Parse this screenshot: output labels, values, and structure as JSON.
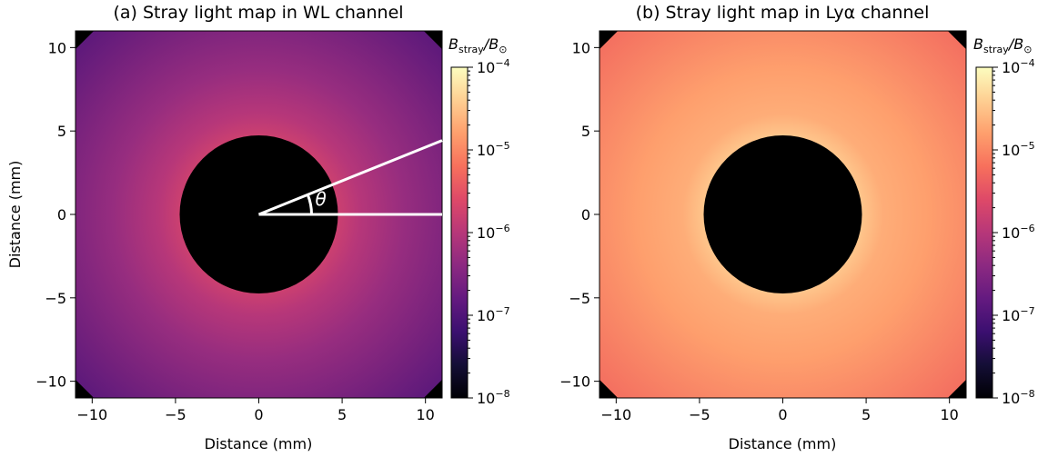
{
  "chart_data": [
    {
      "type": "heatmap",
      "title": "(a) Stray light map in WL channel",
      "xlabel": "Distance (mm)",
      "ylabel": "Distance (mm)",
      "xlim": [
        -11,
        11
      ],
      "ylim": [
        -11,
        11
      ],
      "xticks": [
        -10,
        -5,
        0,
        5,
        10
      ],
      "yticks": [
        -10,
        -5,
        0,
        5,
        10
      ],
      "xtick_labels": [
        "−10",
        "−5",
        "0",
        "5",
        "10"
      ],
      "ytick_labels": [
        "−10",
        "−5",
        "0",
        "5",
        "10"
      ],
      "occulter_radius_mm": 4.75,
      "colormap": "magma",
      "colorbar": {
        "label_main": "B",
        "label_sub": "stray",
        "label_tail": "/B",
        "label_sun": "⊙",
        "scale": "log",
        "range": [
          1e-08,
          0.0001
        ],
        "ticks": [
          {
            "base": "10",
            "exp": "−4"
          },
          {
            "base": "10",
            "exp": "−5"
          },
          {
            "base": "10",
            "exp": "−6"
          },
          {
            "base": "10",
            "exp": "−7"
          },
          {
            "base": "10",
            "exp": "−8"
          }
        ]
      },
      "annotation": {
        "symbol": "θ",
        "angle_deg": 22
      },
      "edge_level": 0.3,
      "peak_level": 0.55
    },
    {
      "type": "heatmap",
      "title": "(b) Stray light map in Lyα channel",
      "xlabel": "Distance (mm)",
      "ylabel": "",
      "xlim": [
        -11,
        11
      ],
      "ylim": [
        -11,
        11
      ],
      "xticks": [
        -10,
        -5,
        0,
        5,
        10
      ],
      "yticks": [
        -10,
        -5,
        0,
        5,
        10
      ],
      "xtick_labels": [
        "−10",
        "−5",
        "0",
        "5",
        "10"
      ],
      "ytick_labels": [
        "−10",
        "−5",
        "0",
        "5",
        "10"
      ],
      "occulter_radius_mm": 4.75,
      "colormap": "magma",
      "colorbar": {
        "label_main": "B",
        "label_sub": "stray",
        "label_tail": "/B",
        "label_sun": "⊙",
        "scale": "log",
        "range": [
          1e-08,
          0.0001
        ],
        "ticks": [
          {
            "base": "10",
            "exp": "−4"
          },
          {
            "base": "10",
            "exp": "−5"
          },
          {
            "base": "10",
            "exp": "−6"
          },
          {
            "base": "10",
            "exp": "−7"
          },
          {
            "base": "10",
            "exp": "−8"
          }
        ]
      },
      "edge_level": 0.72,
      "peak_level": 0.88
    }
  ]
}
